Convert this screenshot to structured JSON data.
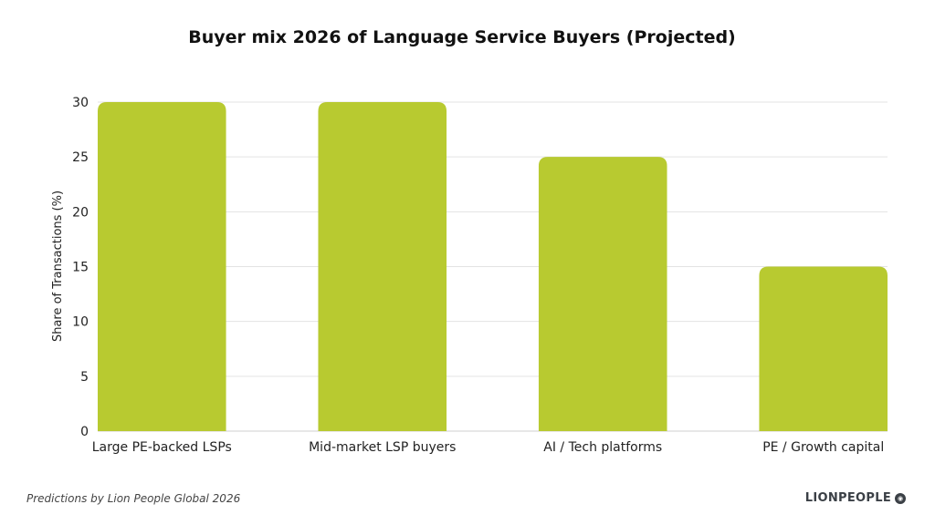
{
  "chart_data": {
    "type": "bar",
    "title": "Buyer mix 2026 of Language Service Buyers (Projected)",
    "xlabel": "",
    "ylabel": "Share of Transactions (%)",
    "categories": [
      "Large PE-backed LSPs",
      "Mid-market LSP buyers",
      "AI / Tech platforms",
      "PE / Growth capital"
    ],
    "values": [
      30,
      30,
      25,
      15
    ],
    "ylim": [
      0,
      30
    ],
    "yticks": [
      0,
      5,
      10,
      15,
      20,
      25,
      30
    ],
    "grid": true,
    "legend": "none",
    "bar_color": "#b8ca30"
  },
  "footer": {
    "note": "Predictions by Lion People Global 2026",
    "logo_text": "LIONPEOPLE",
    "logo_icon": "lion-globe-icon"
  }
}
